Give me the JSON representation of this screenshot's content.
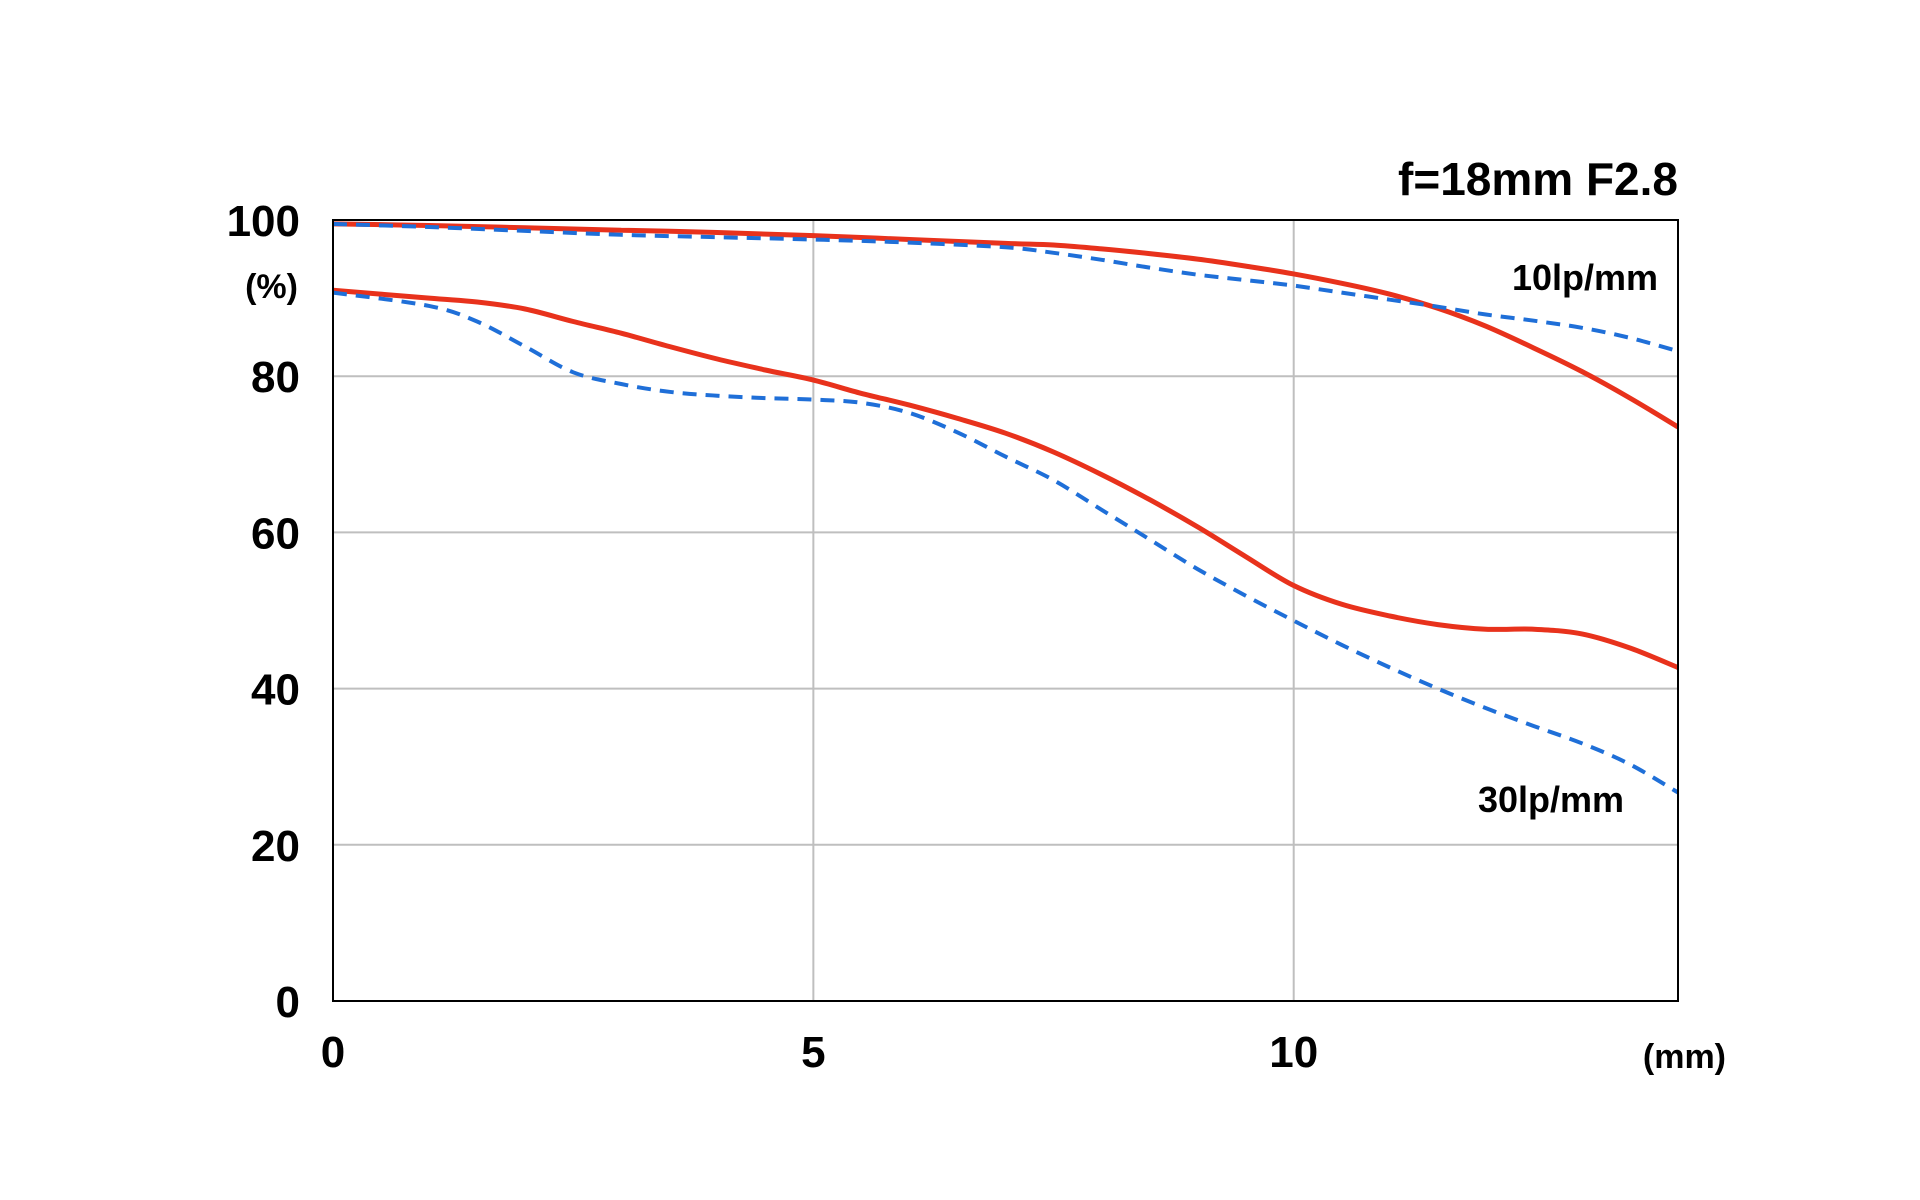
{
  "chart_data": {
    "type": "line",
    "title": "f=18mm F2.8",
    "xlabel": "(mm)",
    "ylabel": "(%)",
    "xlim": [
      0,
      14
    ],
    "ylim": [
      0,
      100
    ],
    "x_ticks": [
      0,
      5,
      10
    ],
    "y_ticks": [
      0,
      20,
      40,
      60,
      80,
      100
    ],
    "grid": true,
    "annotations": [
      {
        "text": "10lp/mm",
        "near_series": "10lp/mm"
      },
      {
        "text": "30lp/mm",
        "near_series": "30lp/mm"
      }
    ],
    "colors": {
      "solid": "#e8321c",
      "dashed": "#1f6fd8",
      "grid": "#bfbfbf",
      "frame": "#000000"
    },
    "series": [
      {
        "group": "10lp/mm",
        "style": "solid",
        "color": "#e8321c",
        "x": [
          0,
          1,
          2,
          3,
          4,
          5,
          6,
          7,
          7.5,
          8,
          8.5,
          9,
          9.5,
          10,
          10.5,
          11,
          11.5,
          12,
          12.5,
          13,
          13.5,
          14
        ],
        "y": [
          99.5,
          99.3,
          99.0,
          98.7,
          98.4,
          98.0,
          97.5,
          97.0,
          96.8,
          96.3,
          95.7,
          95.0,
          94.1,
          93.1,
          91.9,
          90.5,
          88.7,
          86.4,
          83.6,
          80.6,
          77.2,
          73.5
        ]
      },
      {
        "group": "10lp/mm",
        "style": "dashed",
        "color": "#1f6fd8",
        "x": [
          0,
          1,
          2,
          3,
          4,
          5,
          6,
          7,
          7.5,
          8,
          8.5,
          9,
          9.5,
          10,
          10.5,
          11,
          11.5,
          12,
          12.5,
          13,
          13.5,
          14
        ],
        "y": [
          99.5,
          99.1,
          98.6,
          98.1,
          97.8,
          97.5,
          97.1,
          96.5,
          95.8,
          94.9,
          93.9,
          93.0,
          92.3,
          91.6,
          90.7,
          89.8,
          88.9,
          87.9,
          87.1,
          86.2,
          84.9,
          83.2
        ]
      },
      {
        "group": "30lp/mm",
        "style": "solid",
        "color": "#e8321c",
        "x": [
          0,
          1,
          1.5,
          2,
          2.5,
          3,
          3.5,
          4,
          4.5,
          5,
          5.5,
          6,
          6.5,
          7,
          7.5,
          8,
          8.5,
          9,
          9.5,
          10,
          10.5,
          11,
          11.5,
          12,
          12.5,
          13,
          13.5,
          14
        ],
        "y": [
          91.0,
          90.0,
          89.5,
          88.6,
          87.0,
          85.5,
          83.8,
          82.2,
          80.8,
          79.5,
          77.8,
          76.3,
          74.6,
          72.7,
          70.3,
          67.4,
          64.2,
          60.7,
          56.9,
          53.2,
          50.8,
          49.3,
          48.2,
          47.6,
          47.6,
          47.0,
          45.2,
          42.7
        ]
      },
      {
        "group": "30lp/mm",
        "style": "dashed",
        "color": "#1f6fd8",
        "x": [
          0,
          1,
          1.5,
          2,
          2.5,
          3,
          3.5,
          4,
          4.5,
          5,
          5.5,
          6,
          6.5,
          7,
          7.5,
          8,
          8.5,
          9,
          9.5,
          10,
          10.5,
          11,
          11.5,
          12,
          12.5,
          13,
          13.5,
          14
        ],
        "y": [
          90.7,
          89.0,
          87.0,
          83.8,
          80.5,
          79.0,
          78.0,
          77.5,
          77.2,
          77.0,
          76.6,
          75.3,
          72.8,
          69.7,
          66.7,
          62.9,
          59.1,
          55.3,
          51.9,
          48.7,
          45.6,
          42.7,
          40.0,
          37.5,
          35.2,
          33.0,
          30.3,
          26.7
        ]
      }
    ]
  }
}
